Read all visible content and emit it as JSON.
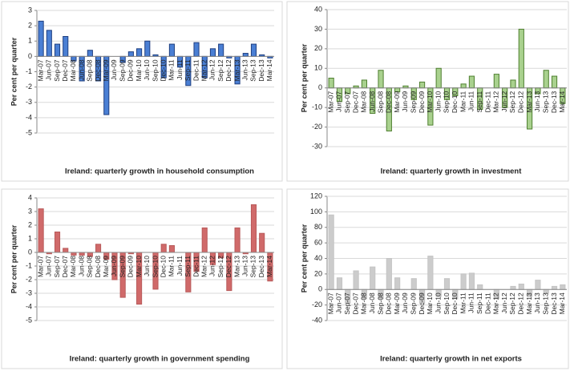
{
  "chart_data": [
    {
      "type": "bar",
      "title": "Ireland: quarterly growth in household consumption",
      "y_label": "Per cent per quarter",
      "categories": [
        "Mar-07",
        "Jun-07",
        "Sep-07",
        "Dec-07",
        "Mar-08",
        "Jun-08",
        "Sep-08",
        "Dec-08",
        "Mar-09",
        "Jun-09",
        "Sep-09",
        "Dec-09",
        "Mar-10",
        "Jun-10",
        "Sep-10",
        "Dec-10",
        "Mar-11",
        "Jun-11",
        "Sep-11",
        "Dec-11",
        "Mar-12",
        "Jun-12",
        "Sep-12",
        "Dec-12",
        "Mar-13",
        "Jun-13",
        "Sep-13",
        "Dec-13",
        "Mar-14"
      ],
      "values": [
        2.3,
        1.7,
        0.8,
        1.3,
        -0.3,
        -1.6,
        0.4,
        -1.6,
        -3.8,
        0.0,
        -0.4,
        0.3,
        0.5,
        1.0,
        0.1,
        -1.4,
        0.8,
        -0.7,
        -1.9,
        0.9,
        -1.4,
        0.5,
        0.8,
        -0.1,
        -1.8,
        0.2,
        0.8,
        0.1,
        -0.1
      ],
      "color": "#4a7fd4",
      "edgecolor": "#1f3f80",
      "ylim": [
        -5,
        3
      ],
      "yticks": [
        -5,
        -4,
        -3,
        -2,
        -1,
        0,
        1,
        2,
        3
      ]
    },
    {
      "type": "bar",
      "title": "Ireland: quarterly growth in investment",
      "y_label": "Per cent per quarter",
      "categories": [
        "Mar-07",
        "Jun-07",
        "Sep-07",
        "Dec-07",
        "Mar-08",
        "Jun-08",
        "Sep-08",
        "Dec-08",
        "Mar-09",
        "Jun-09",
        "Sep-09",
        "Dec-09",
        "Mar-10",
        "Jun-10",
        "Sep-10",
        "Dec-10",
        "Mar-11",
        "Jun-11",
        "Sep-11",
        "Dec-11",
        "Mar-12",
        "Jun-12",
        "Sep-12",
        "Dec-12",
        "Mar-13",
        "Jun-13",
        "Sep-13",
        "Dec-13",
        "Mar-14"
      ],
      "values": [
        5,
        -7,
        -3,
        1,
        4,
        -13,
        9,
        -22,
        -2,
        1,
        -6,
        3,
        -19,
        10,
        -6,
        -4,
        2,
        6,
        -11,
        0,
        7,
        -10,
        4,
        30,
        -21,
        -3,
        9,
        6,
        -8
      ],
      "color": "#a9d18e",
      "edgecolor": "#4f7f30",
      "ylim": [
        -30,
        40
      ],
      "yticks": [
        -30,
        -20,
        -10,
        0,
        10,
        20,
        30,
        40
      ]
    },
    {
      "type": "bar",
      "title": "Ireland: quarterly growth in government spending",
      "y_label": "Per cent per quarter",
      "categories": [
        "Mar-07",
        "Jun-07",
        "Sep-07",
        "Dec-07",
        "Mar-08",
        "Jun-08",
        "Sep-08",
        "Dec-08",
        "Mar-09",
        "Jun-09",
        "Sep-09",
        "Dec-09",
        "Mar-10",
        "Jun-10",
        "Sep-10",
        "Dec-10",
        "Mar-11",
        "Jun-11",
        "Sep-11",
        "Dec-11",
        "Mar-12",
        "Jun-12",
        "Sep-12",
        "Dec-12",
        "Mar-13",
        "Jun-13",
        "Sep-13",
        "Dec-13",
        "Mar-14"
      ],
      "values": [
        3.2,
        -0.1,
        1.5,
        0.3,
        -0.2,
        -0.2,
        -0.3,
        0.6,
        -0.5,
        -2.0,
        -3.3,
        -0.1,
        -3.8,
        0.0,
        -2.7,
        0.6,
        0.5,
        0.0,
        -2.9,
        -1.4,
        1.8,
        -0.9,
        -0.4,
        -2.8,
        1.8,
        -0.1,
        3.5,
        1.4,
        -2.1
      ],
      "color": "#d06a6a",
      "edgecolor": "#b85a5a",
      "ylim": [
        -5,
        4
      ],
      "yticks": [
        -5,
        -4,
        -3,
        -2,
        -1,
        0,
        1,
        2,
        3,
        4
      ]
    },
    {
      "type": "bar",
      "title": "Ireland: quarterly growth in net exports",
      "y_label": "Per cent per quarter",
      "categories": [
        "Mar-07",
        "Jun-07",
        "Sep-07",
        "Dec-07",
        "Mar-08",
        "Jun-08",
        "Sep-08",
        "Dec-08",
        "Mar-09",
        "Jun-09",
        "Sep-09",
        "Dec-09",
        "Mar-10",
        "Jun-10",
        "Sep-10",
        "Dec-10",
        "Mar-11",
        "Jun-11",
        "Sep-11",
        "Dec-11",
        "Mar-12",
        "Jun-12",
        "Sep-12",
        "Dec-12",
        "Mar-13",
        "Jun-13",
        "Sep-13",
        "Dec-13",
        "Mar-14"
      ],
      "values": [
        96,
        15,
        -18,
        24,
        -12,
        29,
        -12,
        40,
        15,
        0,
        14,
        -18,
        43,
        -9,
        14,
        -12,
        20,
        21,
        6,
        0,
        -12,
        0,
        4,
        7,
        -9,
        12,
        -5,
        4,
        6
      ],
      "color": "#cccccc",
      "edgecolor": "#c4c4c4",
      "ylim": [
        -40,
        120
      ],
      "yticks": [
        -40,
        -20,
        0,
        20,
        40,
        60,
        80,
        100,
        120
      ]
    }
  ]
}
